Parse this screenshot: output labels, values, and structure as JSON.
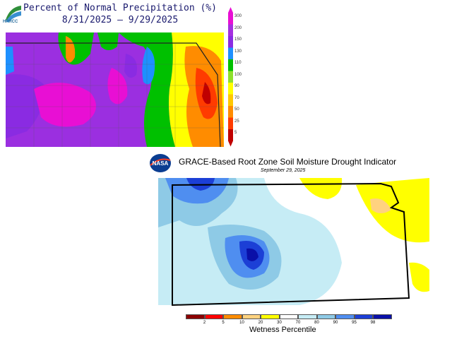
{
  "precip": {
    "logo_text": "HPRCC",
    "title": "Percent of Normal Precipitation (%)",
    "dates": "8/31/2025 – 9/29/2025",
    "legend": [
      {
        "label": "300",
        "color": "#e80fd4"
      },
      {
        "label": "200",
        "color": "#a52ee0"
      },
      {
        "label": "150",
        "color": "#8a2be2"
      },
      {
        "label": "130",
        "color": "#1e90ff"
      },
      {
        "label": "110",
        "color": "#00c000"
      },
      {
        "label": "100",
        "color": "#8de02c"
      },
      {
        "label": "90",
        "color": "#ffff00"
      },
      {
        "label": "70",
        "color": "#ffc800"
      },
      {
        "label": "50",
        "color": "#ff8c00"
      },
      {
        "label": "25",
        "color": "#ff3b00"
      },
      {
        "label": "5",
        "color": "#c00000"
      }
    ]
  },
  "grace": {
    "logo_text": "NASA",
    "title": "GRACE-Based Root Zone Soil  Moisture Drought Indicator",
    "date": "September 29, 2025",
    "legend_title": "Wetness Percentile",
    "legend_colors": [
      "#8b0000",
      "#ff0000",
      "#ff8c00",
      "#ffd27f",
      "#ffff00",
      "#ffffff",
      "#c6ecf5",
      "#8ecae6",
      "#4f8ef0",
      "#1c3fd6",
      "#0a10a8"
    ],
    "legend_ticks": [
      "2",
      "5",
      "10",
      "20",
      "30",
      "70",
      "80",
      "90",
      "95",
      "98"
    ]
  }
}
